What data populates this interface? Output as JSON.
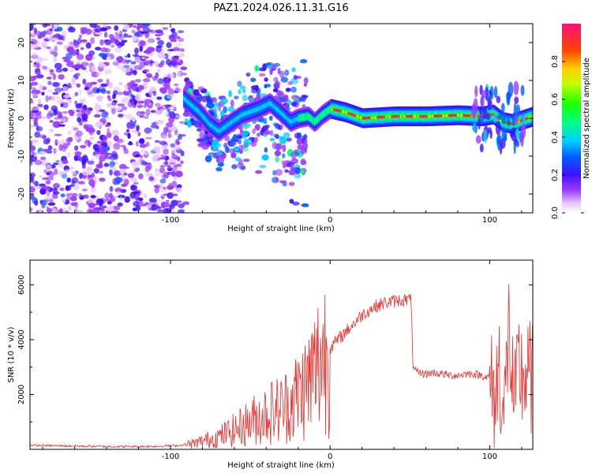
{
  "figure": {
    "title": "PAZ1.2024.026.11.31.G16"
  },
  "chart_data": [
    {
      "type": "heatmap",
      "xlabel": "Height of straight line (km)",
      "ylabel": "Frequency (Hz)",
      "xlim": [
        -188,
        127
      ],
      "ylim": [
        -25,
        25
      ],
      "xticks": [
        -100,
        0,
        100
      ],
      "yticks": [
        -20,
        -10,
        0,
        10,
        20
      ],
      "colorbar": {
        "label": "Normalized spectral amplitude",
        "range": [
          0.0,
          1.0
        ],
        "ticks": [
          0.0,
          0.2,
          0.4,
          0.6,
          0.8
        ]
      },
      "noise_region_x": [
        -188,
        -90
      ],
      "ridge_center_hz": [
        [
          -90,
          4.5
        ],
        [
          -82,
          1.5
        ],
        [
          -76,
          -1.5
        ],
        [
          -70,
          -3.5
        ],
        [
          -62,
          -1.0
        ],
        [
          -55,
          1.0
        ],
        [
          -45,
          2.5
        ],
        [
          -38,
          4.0
        ],
        [
          -30,
          1.0
        ],
        [
          -25,
          -1.0
        ],
        [
          -20,
          0.0
        ],
        [
          -14,
          0.5
        ],
        [
          -10,
          -1.0
        ],
        [
          -5,
          1.0
        ],
        [
          0,
          2.5
        ],
        [
          10,
          1.5
        ],
        [
          20,
          0.0
        ],
        [
          40,
          0.5
        ],
        [
          60,
          0.5
        ],
        [
          80,
          0.8
        ],
        [
          95,
          0.5
        ],
        [
          102,
          1.0
        ],
        [
          108,
          -1.0
        ],
        [
          114,
          -1.5
        ],
        [
          120,
          -0.5
        ],
        [
          127,
          0.5
        ]
      ]
    },
    {
      "type": "line",
      "xlabel": "Height of straight line (km)",
      "ylabel": "SNR (10 * v/v)",
      "xlim": [
        -188,
        127
      ],
      "ylim": [
        0,
        6900
      ],
      "xticks": [
        -100,
        0,
        100
      ],
      "yticks": [
        2000,
        4000,
        6000
      ],
      "color": "#e8302d",
      "series": [
        {
          "values": [
            [
              -188,
              150
            ],
            [
              -170,
              130
            ],
            [
              -150,
              110
            ],
            [
              -130,
              100
            ],
            [
              -110,
              110
            ],
            [
              -95,
              140
            ],
            [
              -90,
              180
            ],
            [
              -85,
              220
            ],
            [
              -80,
              300
            ],
            [
              -70,
              450
            ],
            [
              -60,
              700
            ],
            [
              -50,
              1000
            ],
            [
              -40,
              1300
            ],
            [
              -30,
              1500
            ],
            [
              -25,
              1700
            ],
            [
              -20,
              2000
            ],
            [
              -15,
              2300
            ],
            [
              -10,
              2800
            ],
            [
              -5,
              3400
            ],
            [
              0,
              3700
            ],
            [
              5,
              4000
            ],
            [
              10,
              4300
            ],
            [
              15,
              4600
            ],
            [
              20,
              4900
            ],
            [
              25,
              5100
            ],
            [
              30,
              5250
            ],
            [
              35,
              5350
            ],
            [
              40,
              5400
            ],
            [
              45,
              5450
            ],
            [
              50,
              5450
            ],
            [
              51,
              5400
            ],
            [
              52,
              2900
            ],
            [
              55,
              2800
            ],
            [
              60,
              2750
            ],
            [
              65,
              2800
            ],
            [
              70,
              2750
            ],
            [
              75,
              2700
            ],
            [
              80,
              2700
            ],
            [
              85,
              2750
            ],
            [
              90,
              2750
            ],
            [
              95,
              2700
            ],
            [
              100,
              2600
            ],
            [
              103,
              1500
            ],
            [
              106,
              3200
            ],
            [
              109,
              1000
            ],
            [
              112,
              4500
            ],
            [
              114,
              2500
            ],
            [
              116,
              1500
            ],
            [
              118,
              3000
            ],
            [
              120,
              2700
            ],
            [
              127,
              2550
            ]
          ]
        }
      ]
    }
  ]
}
